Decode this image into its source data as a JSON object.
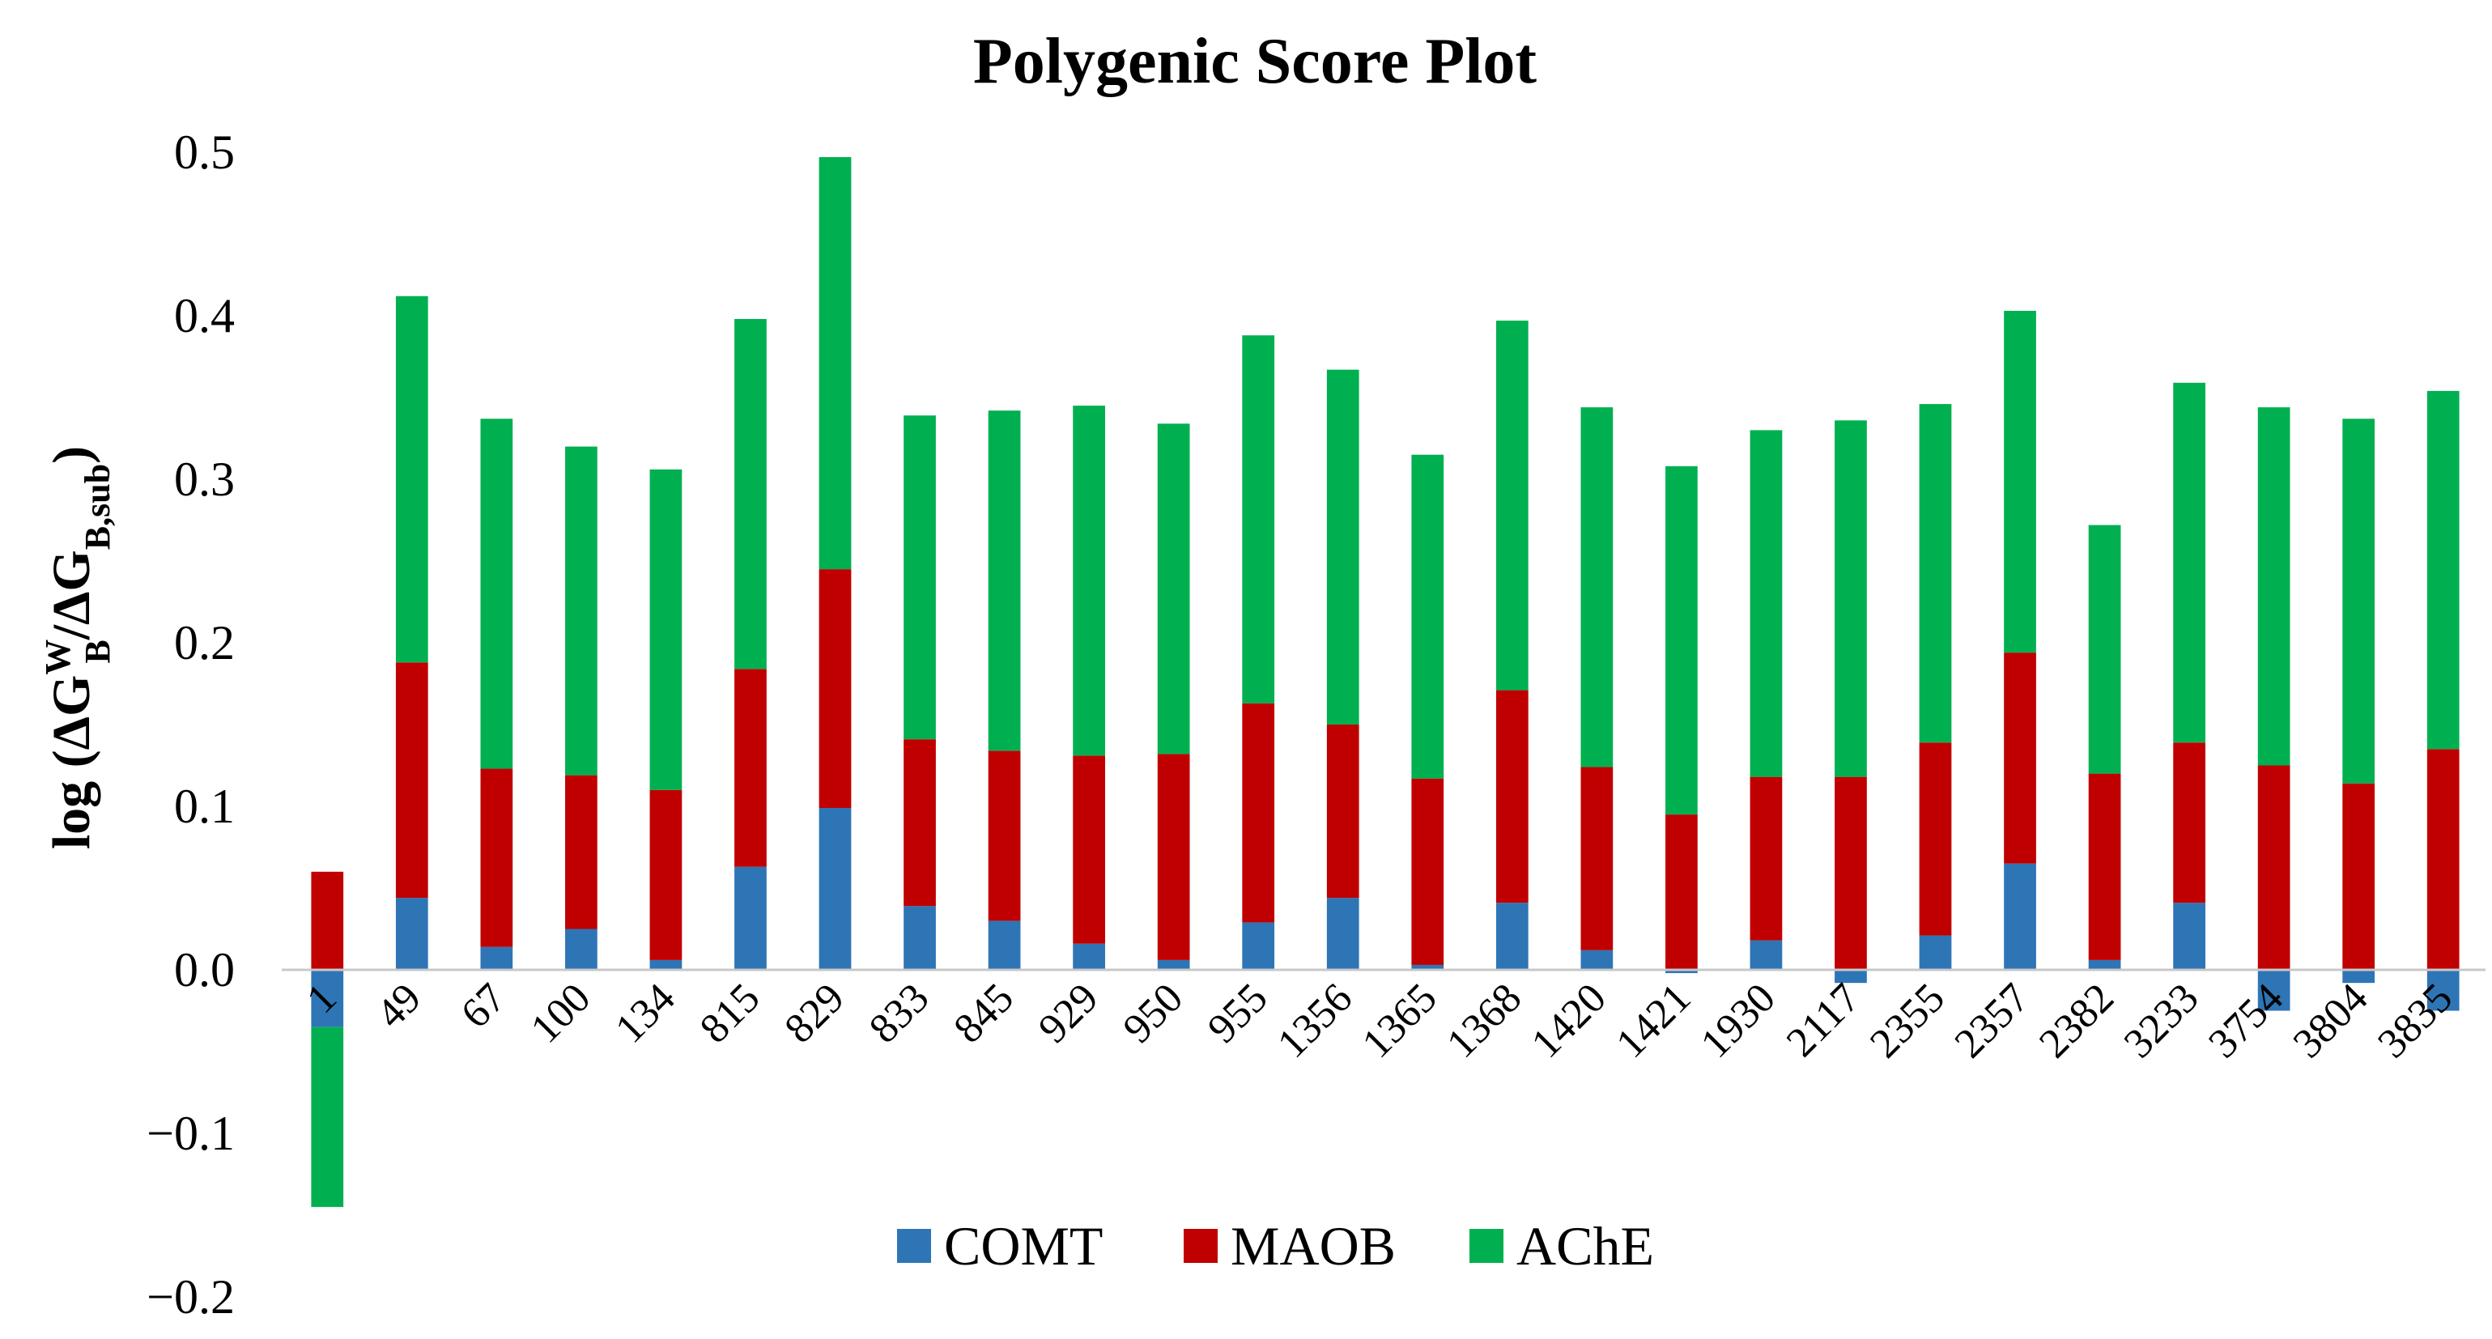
{
  "chart_data": {
    "type": "bar",
    "stacked": true,
    "title": "Polygenic Score Plot",
    "ylabel": {
      "prefix": "log (ΔG",
      "sup": "W",
      "sub1": "B",
      "middle": "/ΔG",
      "sub2": "B,sub",
      "suffix": ")"
    },
    "ylim": [
      -0.2,
      0.5
    ],
    "yticks": [
      "0.5",
      "0.4",
      "0.3",
      "0.2",
      "0.1",
      "0.0",
      "−0.1",
      "−0.2"
    ],
    "ytick_values": [
      0.5,
      0.4,
      0.3,
      0.2,
      0.1,
      0.0,
      -0.1,
      -0.2
    ],
    "grid": false,
    "legend_position": "bottom",
    "categories": [
      "1",
      "49",
      "67",
      "100",
      "134",
      "815",
      "829",
      "833",
      "845",
      "929",
      "950",
      "955",
      "1356",
      "1365",
      "1368",
      "1420",
      "1421",
      "1930",
      "2117",
      "2355",
      "2357",
      "2382",
      "3233",
      "3754",
      "3804",
      "3835"
    ],
    "series": [
      {
        "name": "COMT",
        "color": "#2e75b6",
        "values": [
          -0.035,
          0.044,
          0.014,
          0.025,
          0.006,
          0.063,
          0.099,
          0.039,
          0.03,
          0.016,
          0.006,
          0.029,
          0.044,
          0.003,
          0.041,
          0.012,
          -0.002,
          0.018,
          -0.008,
          0.021,
          0.065,
          0.006,
          0.041,
          -0.025,
          -0.008,
          -0.025
        ]
      },
      {
        "name": "MAOB",
        "color": "#c00000",
        "values": [
          0.06,
          0.144,
          0.109,
          0.094,
          0.104,
          0.121,
          0.146,
          0.102,
          0.104,
          0.115,
          0.126,
          0.134,
          0.106,
          0.114,
          0.13,
          0.112,
          0.095,
          0.1,
          0.118,
          0.118,
          0.129,
          0.114,
          0.098,
          0.125,
          0.114,
          0.135
        ]
      },
      {
        "name": "AChE",
        "color": "#00b050",
        "values": [
          -0.11,
          0.224,
          0.214,
          0.201,
          0.196,
          0.214,
          0.252,
          0.198,
          0.208,
          0.214,
          0.202,
          0.225,
          0.217,
          0.198,
          0.226,
          0.22,
          0.213,
          0.212,
          0.218,
          0.207,
          0.209,
          0.152,
          0.22,
          0.219,
          0.223,
          0.219
        ]
      }
    ]
  }
}
